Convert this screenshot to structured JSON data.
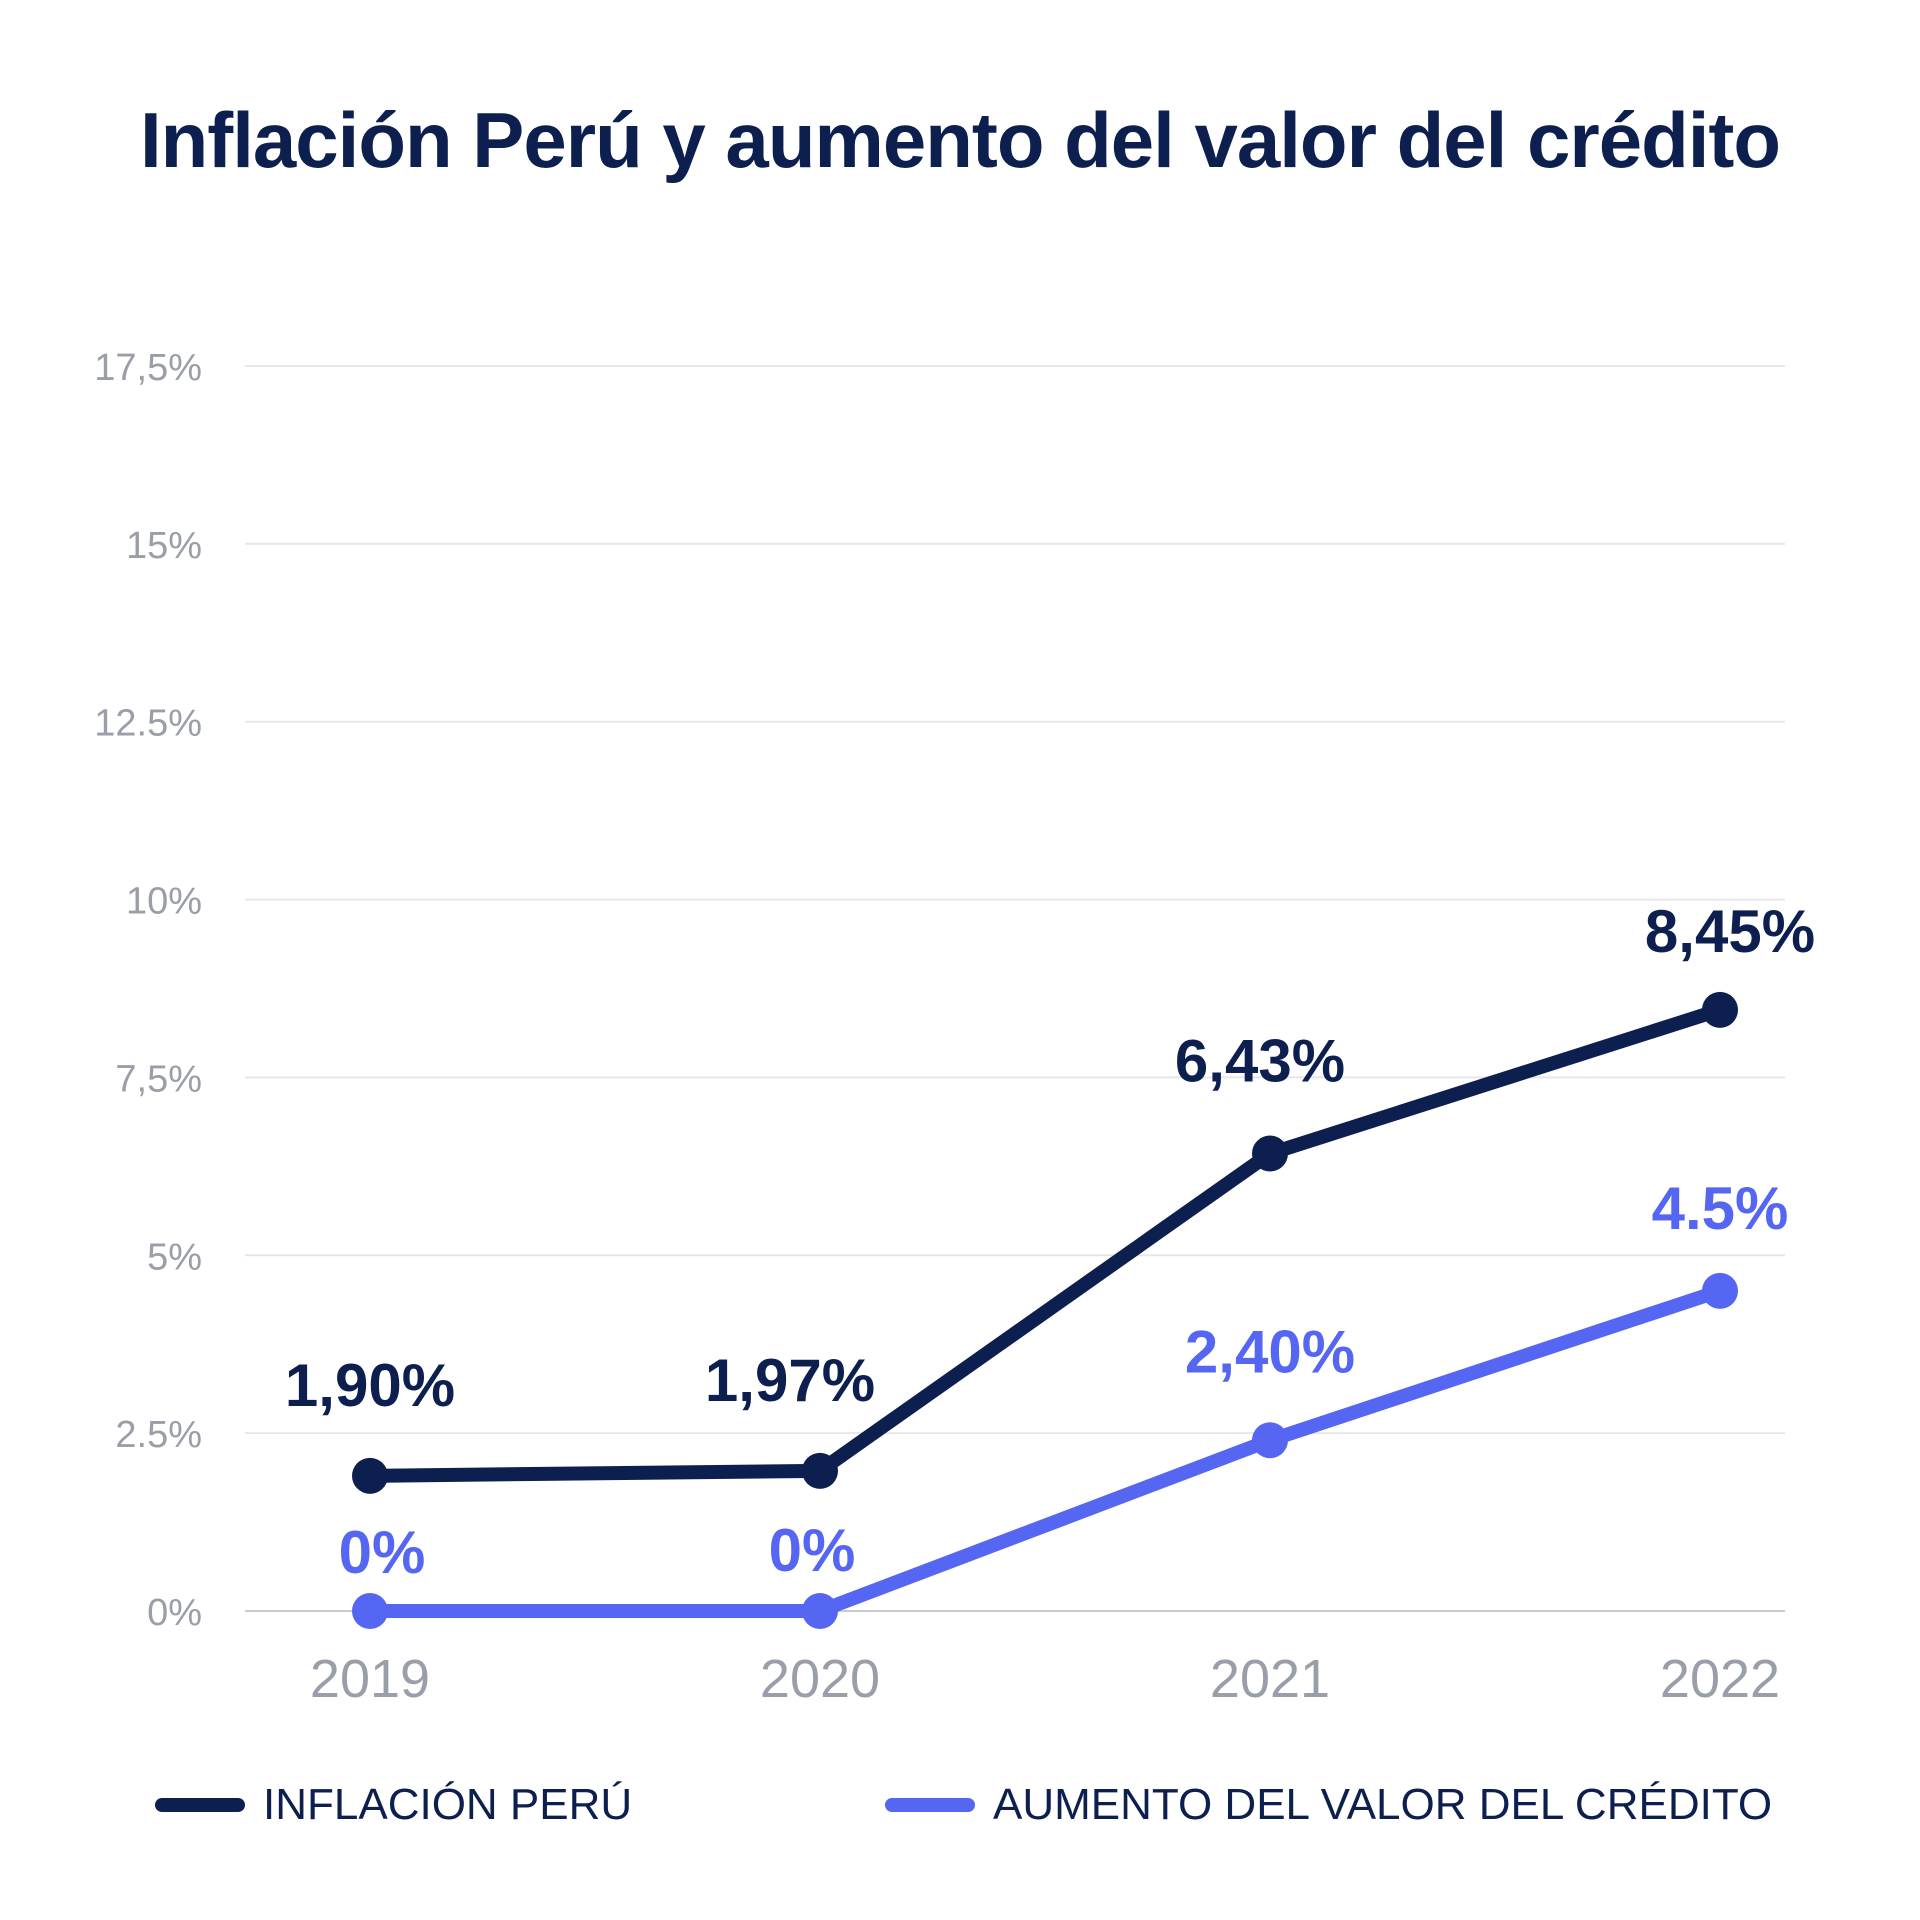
{
  "chart_data": {
    "type": "line",
    "title": "Inflación Perú y aumento del valor del crédito",
    "categories": [
      "2019",
      "2020",
      "2021",
      "2022"
    ],
    "y_ticks": [
      {
        "value": 0,
        "label": "0%"
      },
      {
        "value": 2.5,
        "label": "2.5%"
      },
      {
        "value": 5,
        "label": "5%"
      },
      {
        "value": 7.5,
        "label": "7,5%"
      },
      {
        "value": 10,
        "label": "10%"
      },
      {
        "value": 12.5,
        "label": "12.5%"
      },
      {
        "value": 15,
        "label": "15%"
      },
      {
        "value": 17.5,
        "label": "17,5%"
      }
    ],
    "ylim": [
      0,
      17.5
    ],
    "grid": true,
    "legend_position": "bottom",
    "series": [
      {
        "name": "INFLACIÓN PERÚ",
        "color": "#0d1f4f",
        "values": [
          1.9,
          1.97,
          6.43,
          8.45
        ],
        "labels": [
          "1,90%",
          "1,97%",
          "6,43%",
          "8,45%"
        ]
      },
      {
        "name": "AUMENTO DEL VALOR DEL CRÉDITO",
        "color": "#5566f2",
        "values": [
          0,
          0,
          2.4,
          4.5
        ],
        "labels": [
          "0%",
          "0%",
          "2,40%",
          "4.5%"
        ]
      }
    ]
  }
}
